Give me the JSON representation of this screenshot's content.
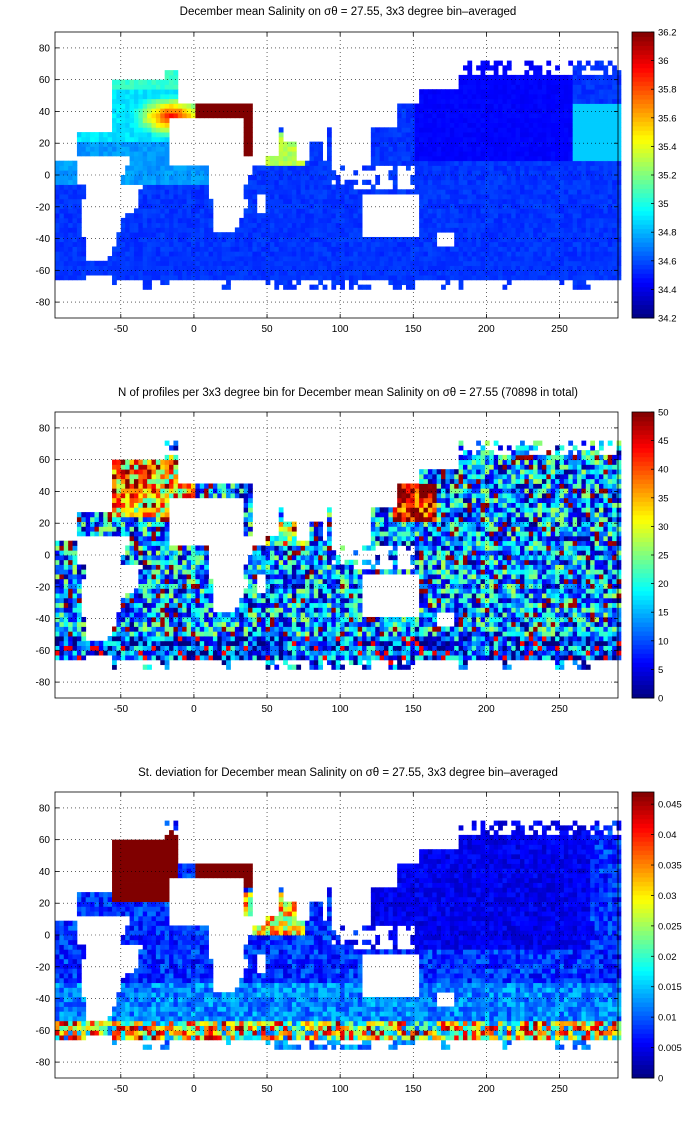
{
  "chart_data": [
    {
      "type": "heatmap",
      "title": "December mean Salinity on σθ = 27.55, 3x3 degree bin–averaged",
      "xlim": [
        -95,
        290
      ],
      "ylim": [
        -90,
        90
      ],
      "xticks": [
        "-50",
        "0",
        "50",
        "100",
        "150",
        "200",
        "250"
      ],
      "yticks": [
        "80",
        "60",
        "40",
        "20",
        "0",
        "-20",
        "-40",
        "-60",
        "-80"
      ],
      "colorbar": {
        "min": 34.2,
        "max": 36.2,
        "ticks": [
          "36.2",
          "36",
          "35.8",
          "35.6",
          "35.4",
          "35.2",
          "35",
          "34.8",
          "34.6",
          "34.4",
          "34.2"
        ]
      },
      "grid": "dotted",
      "colormap": "jet",
      "regions": [
        {
          "area": "North Atlantic subtropics",
          "value": 35.9
        },
        {
          "area": "Mediterranean Sea",
          "value": 36.2
        },
        {
          "area": "Red Sea",
          "value": 36.2
        },
        {
          "area": "Arabian Sea",
          "value": 35.4
        },
        {
          "area": "North Atlantic subpolar",
          "value": 35.1
        },
        {
          "area": "Pacific Ocean",
          "value": 34.5
        },
        {
          "area": "Southern Ocean",
          "value": 34.5
        },
        {
          "area": "South Atlantic",
          "value": 34.6
        },
        {
          "area": "Indian Ocean",
          "value": 34.6
        }
      ]
    },
    {
      "type": "heatmap",
      "title": "N of profiles per 3x3 degree bin for December mean Salinity on σθ = 27.55 (70898 in total)",
      "xlim": [
        -95,
        290
      ],
      "ylim": [
        -90,
        90
      ],
      "xticks": [
        "-50",
        "0",
        "50",
        "100",
        "150",
        "200",
        "250"
      ],
      "yticks": [
        "80",
        "60",
        "40",
        "20",
        "0",
        "-20",
        "-40",
        "-60",
        "-80"
      ],
      "colorbar": {
        "min": 0,
        "max": 50,
        "ticks": [
          "50",
          "45",
          "40",
          "35",
          "30",
          "25",
          "20",
          "15",
          "10",
          "5",
          "0"
        ]
      },
      "grid": "dotted",
      "colormap": "jet",
      "total_profiles": 70898,
      "regions": [
        {
          "area": "Kuroshio / NW Pacific",
          "value": 50
        },
        {
          "area": "North Atlantic",
          "value": 40
        },
        {
          "area": "Open Pacific",
          "value": 18
        },
        {
          "area": "Indian Ocean",
          "value": 18
        },
        {
          "area": "Southern Ocean",
          "value": 14
        }
      ]
    },
    {
      "type": "heatmap",
      "title": "St. deviation for December mean Salinity on σθ = 27.55, 3x3 degree bin–averaged",
      "xlim": [
        -95,
        290
      ],
      "ylim": [
        -90,
        90
      ],
      "xticks": [
        "-50",
        "0",
        "50",
        "100",
        "150",
        "200",
        "250"
      ],
      "yticks": [
        "80",
        "60",
        "40",
        "20",
        "0",
        "-20",
        "-40",
        "-60",
        "-80"
      ],
      "colorbar": {
        "min": 0,
        "max": 0.047,
        "ticks": [
          "0.045",
          "0.04",
          "0.035",
          "0.03",
          "0.025",
          "0.02",
          "0.015",
          "0.01",
          "0.005",
          "0"
        ]
      },
      "grid": "dotted",
      "colormap": "jet",
      "regions": [
        {
          "area": "North Atlantic",
          "value": 0.047
        },
        {
          "area": "Mediterranean",
          "value": 0.047
        },
        {
          "area": "Red Sea / Arabian Sea",
          "value": 0.03
        },
        {
          "area": "Pacific Ocean",
          "value": 0.004
        },
        {
          "area": "Southern Ocean",
          "value": 0.012
        }
      ]
    }
  ]
}
